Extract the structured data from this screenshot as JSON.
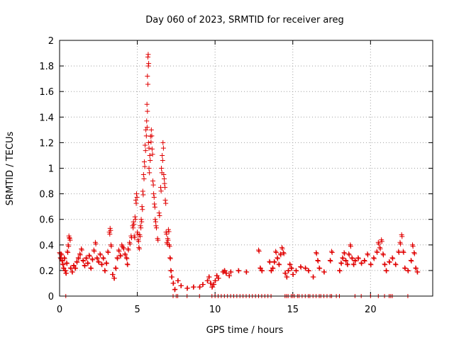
{
  "chart_data": {
    "type": "scatter",
    "title": "Day 060 of 2023, SRMTID for receiver areg",
    "xlabel": "GPS time / hours",
    "ylabel": "SRMTID / TECUs",
    "xlim": [
      0,
      24
    ],
    "ylim": [
      0,
      2
    ],
    "x_ticks": [
      0,
      5,
      10,
      15,
      20
    ],
    "x_tick_labels": [
      "0",
      "5",
      "10",
      "15",
      "20"
    ],
    "y_ticks": [
      0,
      0.2,
      0.4,
      0.6,
      0.8,
      1,
      1.2,
      1.4,
      1.6,
      1.8,
      2
    ],
    "y_tick_labels": [
      "0",
      "0.2",
      "0.4",
      "0.6",
      "0.8",
      "1",
      "1.2",
      "1.4",
      "1.6",
      "1.8",
      "2"
    ],
    "grid": true,
    "marker": "+",
    "color": "#e00000",
    "series": [
      {
        "name": "SRMTID",
        "points": [
          [
            0.0,
            0.34
          ],
          [
            0.05,
            0.3
          ],
          [
            0.1,
            0.33
          ],
          [
            0.15,
            0.28
          ],
          [
            0.2,
            0.25
          ],
          [
            0.25,
            0.22
          ],
          [
            0.3,
            0.3
          ],
          [
            0.35,
            0.2
          ],
          [
            0.4,
            0.18
          ],
          [
            0.45,
            0.26
          ],
          [
            0.5,
            0.35
          ],
          [
            0.55,
            0.4
          ],
          [
            0.6,
            0.47
          ],
          [
            0.65,
            0.45
          ],
          [
            0.7,
            0.22
          ],
          [
            0.8,
            0.19
          ],
          [
            0.9,
            0.24
          ],
          [
            1.0,
            0.22
          ],
          [
            1.1,
            0.27
          ],
          [
            1.2,
            0.3
          ],
          [
            1.3,
            0.33
          ],
          [
            1.4,
            0.37
          ],
          [
            1.5,
            0.28
          ],
          [
            1.6,
            0.24
          ],
          [
            1.7,
            0.3
          ],
          [
            1.8,
            0.26
          ],
          [
            1.9,
            0.32
          ],
          [
            2.0,
            0.22
          ],
          [
            2.1,
            0.29
          ],
          [
            2.2,
            0.36
          ],
          [
            2.3,
            0.42
          ],
          [
            2.4,
            0.3
          ],
          [
            2.5,
            0.27
          ],
          [
            2.6,
            0.33
          ],
          [
            2.7,
            0.25
          ],
          [
            2.8,
            0.3
          ],
          [
            2.9,
            0.2
          ],
          [
            3.0,
            0.26
          ],
          [
            3.1,
            0.35
          ],
          [
            3.2,
            0.5
          ],
          [
            3.25,
            0.53
          ],
          [
            3.3,
            0.4
          ],
          [
            3.4,
            0.17
          ],
          [
            3.5,
            0.14
          ],
          [
            3.6,
            0.22
          ],
          [
            3.7,
            0.3
          ],
          [
            3.8,
            0.36
          ],
          [
            3.9,
            0.32
          ],
          [
            4.0,
            0.4
          ],
          [
            4.1,
            0.38
          ],
          [
            4.2,
            0.33
          ],
          [
            4.3,
            0.3
          ],
          [
            4.35,
            0.25
          ],
          [
            4.4,
            0.37
          ],
          [
            4.5,
            0.42
          ],
          [
            4.6,
            0.47
          ],
          [
            4.7,
            0.55
          ],
          [
            4.75,
            0.58
          ],
          [
            4.8,
            0.47
          ],
          [
            4.85,
            0.62
          ],
          [
            4.9,
            0.75
          ],
          [
            4.95,
            0.8
          ],
          [
            5.0,
            0.5
          ],
          [
            5.05,
            0.44
          ],
          [
            5.1,
            0.38
          ],
          [
            5.15,
            0.48
          ],
          [
            5.2,
            0.55
          ],
          [
            5.25,
            0.6
          ],
          [
            5.3,
            0.7
          ],
          [
            5.35,
            0.82
          ],
          [
            5.4,
            0.95
          ],
          [
            5.45,
            1.05
          ],
          [
            5.5,
            1.18
          ],
          [
            5.55,
            1.3
          ],
          [
            5.6,
            1.37
          ],
          [
            5.62,
            1.5
          ],
          [
            5.65,
            1.72
          ],
          [
            5.68,
            1.87
          ],
          [
            5.7,
            1.89
          ],
          [
            5.72,
            1.2
          ],
          [
            5.75,
            1.0
          ],
          [
            5.8,
            1.1
          ],
          [
            5.85,
            1.25
          ],
          [
            5.9,
            1.3
          ],
          [
            5.95,
            1.15
          ],
          [
            6.0,
            0.9
          ],
          [
            6.05,
            0.8
          ],
          [
            6.1,
            0.72
          ],
          [
            6.15,
            0.6
          ],
          [
            6.2,
            0.55
          ],
          [
            6.3,
            0.45
          ],
          [
            6.4,
            0.65
          ],
          [
            6.5,
            0.85
          ],
          [
            6.55,
            1.0
          ],
          [
            6.6,
            1.1
          ],
          [
            6.65,
            1.2
          ],
          [
            6.7,
            0.95
          ],
          [
            6.75,
            0.88
          ],
          [
            6.8,
            0.75
          ],
          [
            6.85,
            0.5
          ],
          [
            6.9,
            0.42
          ],
          [
            6.95,
            0.45
          ],
          [
            7.0,
            0.52
          ],
          [
            7.05,
            0.4
          ],
          [
            7.1,
            0.3
          ],
          [
            7.15,
            0.2
          ],
          [
            7.2,
            0.15
          ],
          [
            7.3,
            0.1
          ],
          [
            7.4,
            0.05
          ],
          [
            7.6,
            0.12
          ],
          [
            7.8,
            0.08
          ],
          [
            8.2,
            0.06
          ],
          [
            8.6,
            0.07
          ],
          [
            9.0,
            0.07
          ],
          [
            9.2,
            0.09
          ],
          [
            9.5,
            0.12
          ],
          [
            9.6,
            0.15
          ],
          [
            9.7,
            0.1
          ],
          [
            9.8,
            0.07
          ],
          [
            9.9,
            0.09
          ],
          [
            10.0,
            0.12
          ],
          [
            10.1,
            0.16
          ],
          [
            10.2,
            0.14
          ],
          [
            10.5,
            0.19
          ],
          [
            10.6,
            0.2
          ],
          [
            10.7,
            0.18
          ],
          [
            10.9,
            0.16
          ],
          [
            11.0,
            0.19
          ],
          [
            11.5,
            0.2
          ],
          [
            12.0,
            0.19
          ],
          [
            12.8,
            0.36
          ],
          [
            12.9,
            0.22
          ],
          [
            13.0,
            0.2
          ],
          [
            13.5,
            0.27
          ],
          [
            13.6,
            0.2
          ],
          [
            13.7,
            0.22
          ],
          [
            13.8,
            0.27
          ],
          [
            13.9,
            0.35
          ],
          [
            14.0,
            0.3
          ],
          [
            14.1,
            0.25
          ],
          [
            14.2,
            0.33
          ],
          [
            14.3,
            0.38
          ],
          [
            14.4,
            0.34
          ],
          [
            14.5,
            0.18
          ],
          [
            14.6,
            0.15
          ],
          [
            14.7,
            0.2
          ],
          [
            14.8,
            0.25
          ],
          [
            14.9,
            0.22
          ],
          [
            15.0,
            0.17
          ],
          [
            15.2,
            0.2
          ],
          [
            15.5,
            0.23
          ],
          [
            15.8,
            0.22
          ],
          [
            16.0,
            0.2
          ],
          [
            16.3,
            0.15
          ],
          [
            16.5,
            0.34
          ],
          [
            16.6,
            0.28
          ],
          [
            16.7,
            0.22
          ],
          [
            17.0,
            0.19
          ],
          [
            17.4,
            0.28
          ],
          [
            17.5,
            0.35
          ],
          [
            18.0,
            0.2
          ],
          [
            18.1,
            0.26
          ],
          [
            18.2,
            0.3
          ],
          [
            18.3,
            0.34
          ],
          [
            18.4,
            0.28
          ],
          [
            18.5,
            0.25
          ],
          [
            18.6,
            0.33
          ],
          [
            18.7,
            0.4
          ],
          [
            18.8,
            0.3
          ],
          [
            18.9,
            0.25
          ],
          [
            19.0,
            0.28
          ],
          [
            19.2,
            0.3
          ],
          [
            19.4,
            0.26
          ],
          [
            19.6,
            0.28
          ],
          [
            19.8,
            0.33
          ],
          [
            20.0,
            0.25
          ],
          [
            20.2,
            0.3
          ],
          [
            20.4,
            0.35
          ],
          [
            20.5,
            0.42
          ],
          [
            20.6,
            0.38
          ],
          [
            20.7,
            0.44
          ],
          [
            20.8,
            0.33
          ],
          [
            20.9,
            0.25
          ],
          [
            21.0,
            0.2
          ],
          [
            21.2,
            0.27
          ],
          [
            21.4,
            0.3
          ],
          [
            21.6,
            0.25
          ],
          [
            21.8,
            0.35
          ],
          [
            21.9,
            0.42
          ],
          [
            22.0,
            0.48
          ],
          [
            22.1,
            0.35
          ],
          [
            22.2,
            0.22
          ],
          [
            22.4,
            0.2
          ],
          [
            22.6,
            0.28
          ],
          [
            22.7,
            0.4
          ],
          [
            22.8,
            0.34
          ],
          [
            22.9,
            0.22
          ],
          [
            23.0,
            0.19
          ]
        ]
      }
    ],
    "zero_markers": [
      0.4,
      7.3,
      7.5,
      7.6,
      8.2,
      9.0,
      9.8,
      10.0,
      10.2,
      10.4,
      10.6,
      10.8,
      11.0,
      11.2,
      11.4,
      11.6,
      11.8,
      12.0,
      12.2,
      12.4,
      12.6,
      12.8,
      13.0,
      13.2,
      13.4,
      13.6,
      14.5,
      14.6,
      14.7,
      14.9,
      15.0,
      15.1,
      15.3,
      15.4,
      15.6,
      15.8,
      16.0,
      16.1,
      16.3,
      16.5,
      16.7,
      16.8,
      17.0,
      17.2,
      17.4,
      17.5,
      17.8,
      18.0,
      19.0,
      19.4,
      20.0,
      20.5,
      20.9,
      21.2,
      21.3,
      21.4,
      22.4
    ]
  }
}
